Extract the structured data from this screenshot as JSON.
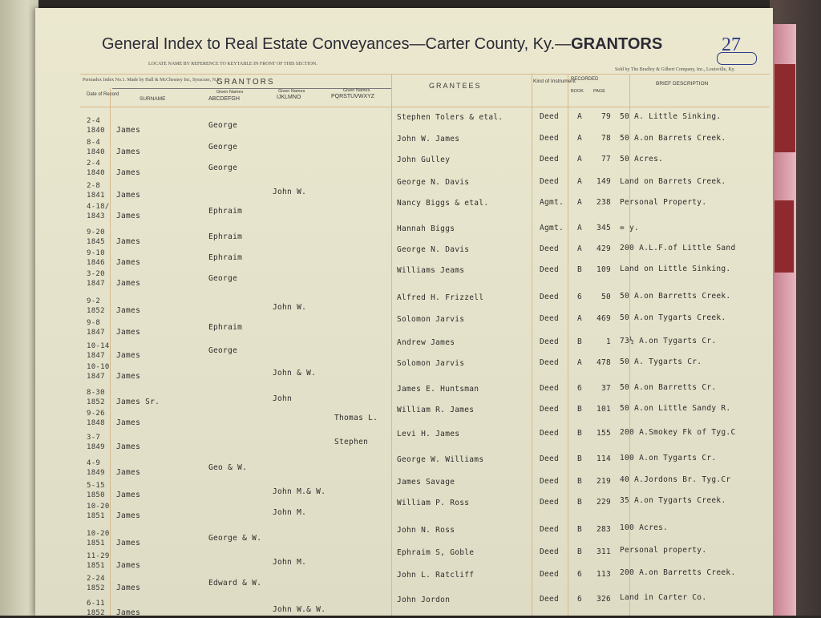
{
  "header": {
    "title": "General Index to Real Estate Conveyances—Carter County, Ky.—",
    "section": "GRANTORS",
    "page_number": "27",
    "locate_note": "LOCATE NAME BY REFERENCE TO KEYTABLE IN FRONT OF THIS SECTION.",
    "maker_note": "Permadex Index No.1. Made by Hall & McChesney Inc, Syracuse, N.Y.",
    "seller_note": "Sold by The Bradley & Gilbert Company, Inc., Louisville, Ky."
  },
  "columns": {
    "date": "Date of Record",
    "grantors": "GRANTORS",
    "surname": "SURNAME",
    "given_label": "Given Names",
    "given1": "ABCDEFGH",
    "given2": "IJKLMNO",
    "given3": "PQRSTUVWXYZ",
    "grantees": "GRANTEES",
    "kind": "Kind of Instrument",
    "recorded": "RECORDED",
    "book": "BOOK",
    "page": "PAGE",
    "description": "BRIEF DESCRIPTION"
  },
  "rows": [
    {
      "date": "2-4",
      "year": "1840",
      "surname": "James",
      "g1": "George",
      "g2": "",
      "g3": "",
      "grantee": "Stephen Tolers & etal.",
      "kind": "Deed",
      "book": "A",
      "page": "79",
      "desc": "50 A. Little Sinking."
    },
    {
      "date": "8-4",
      "year": "1840",
      "surname": "James",
      "g1": "George",
      "g2": "",
      "g3": "",
      "grantee": "John W. James",
      "kind": "Deed",
      "book": "A",
      "page": "78",
      "desc": "50 A.on Barrets Creek."
    },
    {
      "date": "2-4",
      "year": "1840",
      "surname": "James",
      "g1": "George",
      "g2": "",
      "g3": "",
      "grantee": "John Gulley",
      "kind": "Deed",
      "book": "A",
      "page": "77",
      "desc": "50 Acres."
    },
    {
      "date": "2-8",
      "year": "1841",
      "surname": "James",
      "g1": "",
      "g2": "John W.",
      "g3": "",
      "grantee": "George N. Davis",
      "kind": "Deed",
      "book": "A",
      "page": "149",
      "desc": "Land on Barrets Creek."
    },
    {
      "date": "4-18/",
      "year": "1843",
      "surname": "James",
      "g1": "Ephraim",
      "g2": "",
      "g3": "",
      "grantee": "Nancy Biggs & etal.",
      "kind": "Agmt.",
      "book": "A",
      "page": "238",
      "desc": "Personal Property."
    },
    {
      "date": "9-20",
      "year": "1845",
      "surname": "James",
      "g1": "Ephraim",
      "g2": "",
      "g3": "",
      "grantee": "Hannah Biggs",
      "kind": "Agmt.",
      "book": "A",
      "page": "345",
      "desc": "= y."
    },
    {
      "date": "9-10",
      "year": "1846",
      "surname": "James",
      "g1": "Ephraim",
      "g2": "",
      "g3": "",
      "grantee": "George N. Davis",
      "kind": "Deed",
      "book": "A",
      "page": "429",
      "desc": "200 A.L.F.of Little Sand"
    },
    {
      "date": "3-20",
      "year": "1847",
      "surname": "James",
      "g1": "George",
      "g2": "",
      "g3": "",
      "grantee": "Williams Jeams",
      "kind": "Deed",
      "book": "B",
      "page": "109",
      "desc": "Land on Little Sinking."
    },
    {
      "date": "9-2",
      "year": "1852",
      "surname": "James",
      "g1": "",
      "g2": "John W.",
      "g3": "",
      "grantee": "Alfred H. Frizzell",
      "kind": "Deed",
      "book": "6",
      "page": "50",
      "desc": "50 A.on Barretts Creek."
    },
    {
      "date": "9-8",
      "year": "1847",
      "surname": "James",
      "g1": "Ephraim",
      "g2": "",
      "g3": "",
      "grantee": "Solomon Jarvis",
      "kind": "Deed",
      "book": "A",
      "page": "469",
      "desc": "50 A.on Tygarts Creek."
    },
    {
      "date": "10-14",
      "year": "1847",
      "surname": "James",
      "g1": "George",
      "g2": "",
      "g3": "",
      "grantee": "Andrew James",
      "kind": "Deed",
      "book": "B",
      "page": "1",
      "desc": "73½ A.on Tygarts Cr."
    },
    {
      "date": "10-10",
      "year": "1847",
      "surname": "James",
      "g1": "",
      "g2": "John & W.",
      "g3": "",
      "grantee": "Solomon Jarvis",
      "kind": "Deed",
      "book": "A",
      "page": "478",
      "desc": "50 A. Tygarts Cr."
    },
    {
      "date": "8-30",
      "year": "1852",
      "surname": "James Sr.",
      "g1": "",
      "g2": "John",
      "g3": "",
      "grantee": "James E. Huntsman",
      "kind": "Deed",
      "book": "6",
      "page": "37",
      "desc": "50 A.on Barretts Cr."
    },
    {
      "date": "9-26",
      "year": "1848",
      "surname": "James",
      "g1": "",
      "g2": "",
      "g3": "Thomas L.",
      "grantee": "William R. James",
      "kind": "Deed",
      "book": "B",
      "page": "101",
      "desc": "50 A.on Little Sandy R."
    },
    {
      "date": "3-7",
      "year": "1849",
      "surname": "James",
      "g1": "",
      "g2": "",
      "g3": "Stephen",
      "grantee": "Levi H. James",
      "kind": "Deed",
      "book": "B",
      "page": "155",
      "desc": "200 A.Smokey Fk of Tyg.C"
    },
    {
      "date": "4-9",
      "year": "1849",
      "surname": "James",
      "g1": "Geo & W.",
      "g2": "",
      "g3": "",
      "grantee": "George W. Williams",
      "kind": "Deed",
      "book": "B",
      "page": "114",
      "desc": "100 A.on Tygarts Cr."
    },
    {
      "date": "5-15",
      "year": "1850",
      "surname": "James",
      "g1": "",
      "g2": "John M.& W.",
      "g3": "",
      "grantee": "James Savage",
      "kind": "Deed",
      "book": "B",
      "page": "219",
      "desc": "40 A.Jordons Br. Tyg.Cr"
    },
    {
      "date": "10-20",
      "year": "1851",
      "surname": "James",
      "g1": "",
      "g2": "John M.",
      "g3": "",
      "grantee": "William P. Ross",
      "kind": "Deed",
      "book": "B",
      "page": "229",
      "desc": "35 A.on Tygarts Creek."
    },
    {
      "date": "10-20",
      "year": "1851",
      "surname": "James",
      "g1": "George & W.",
      "g2": "",
      "g3": "",
      "grantee": "John N. Ross",
      "kind": "Deed",
      "book": "B",
      "page": "283",
      "desc": "100 Acres."
    },
    {
      "date": "11-29",
      "year": "1851",
      "surname": "James",
      "g1": "",
      "g2": "John M.",
      "g3": "",
      "grantee": "Ephraim S, Goble",
      "kind": "Deed",
      "book": "B",
      "page": "311",
      "desc": "Personal property."
    },
    {
      "date": "2-24",
      "year": "1852",
      "surname": "James",
      "g1": "Edward & W.",
      "g2": "",
      "g3": "",
      "grantee": "John L. Ratcliff",
      "kind": "Deed",
      "book": "6",
      "page": "113",
      "desc": "200 A.on Barretts Creek."
    },
    {
      "date": "6-11",
      "year": "1852",
      "surname": "James",
      "g1": "",
      "g2": "John W.& W.",
      "g3": "",
      "grantee": "John Jordon",
      "kind": "Deed",
      "book": "6",
      "page": "326",
      "desc": "Land in Carter Co."
    }
  ]
}
